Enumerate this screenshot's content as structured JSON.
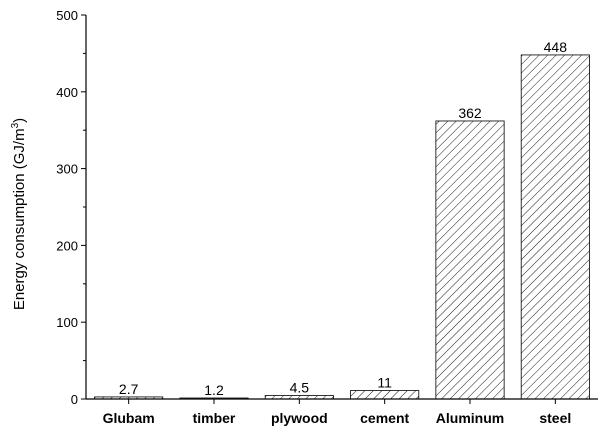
{
  "chart_data": {
    "type": "bar",
    "title": "",
    "xlabel": "",
    "ylabel": "Energy consumption (GJ/m",
    "ylabel_superscript": "3",
    "ylabel_suffix": ")",
    "categories": [
      "Glubam",
      "timber",
      "plywood",
      "cement",
      "Aluminum",
      "steel"
    ],
    "values": [
      2.7,
      1.2,
      4.5,
      11,
      362,
      448
    ],
    "data_labels": [
      "2.7",
      "1.2",
      "4.5",
      "11",
      "362",
      "448"
    ],
    "ylim": [
      0,
      500
    ],
    "yticks": [
      0,
      100,
      200,
      300,
      400,
      500
    ],
    "grid": false,
    "legend": "none",
    "bar_fill": "diagonal-hatch",
    "colors": {
      "bar_stroke": "#000000",
      "hatch": "#000000",
      "axis": "#000000"
    }
  }
}
